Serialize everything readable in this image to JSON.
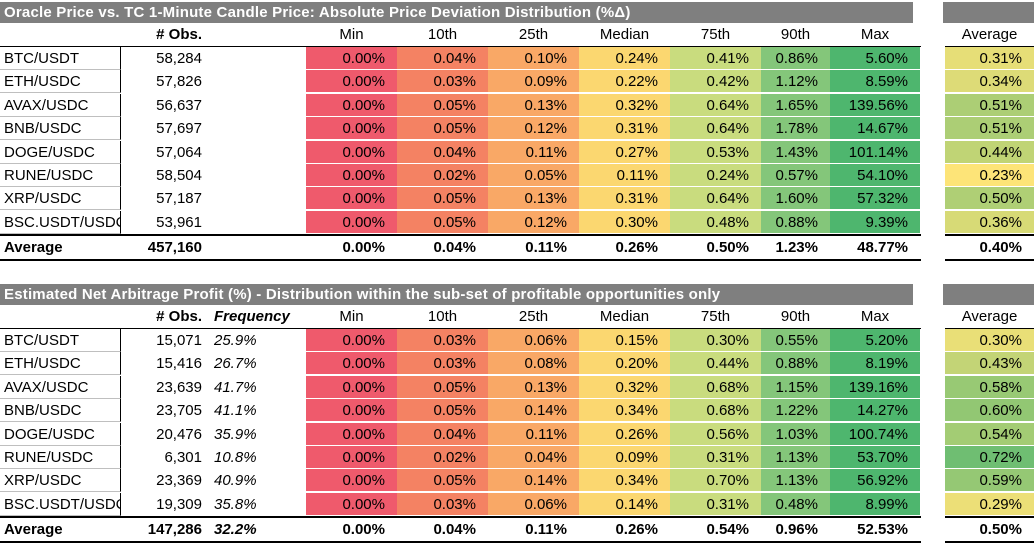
{
  "cols": [
    "Min",
    "10th",
    "25th",
    "Median",
    "75th",
    "90th",
    "Max"
  ],
  "avg_col": "Average",
  "obs_col": "# Obs.",
  "freq_col": "Frequency",
  "table1": {
    "title": "Oracle Price vs. TC 1-Minute Candle Price: Absolute Price Deviation Distribution (%Δ)",
    "rows": [
      {
        "pair": "BTC/USDT",
        "obs": "58,284",
        "vals": [
          "0.00%",
          "0.04%",
          "0.10%",
          "0.24%",
          "0.41%",
          "0.86%",
          "5.60%"
        ],
        "avg": "0.31%"
      },
      {
        "pair": "ETH/USDC",
        "obs": "57,826",
        "vals": [
          "0.00%",
          "0.03%",
          "0.09%",
          "0.22%",
          "0.42%",
          "1.12%",
          "8.59%"
        ],
        "avg": "0.34%"
      },
      {
        "pair": "AVAX/USDC",
        "obs": "56,637",
        "vals": [
          "0.00%",
          "0.05%",
          "0.13%",
          "0.32%",
          "0.64%",
          "1.65%",
          "139.56%"
        ],
        "avg": "0.51%"
      },
      {
        "pair": "BNB/USDC",
        "obs": "57,697",
        "vals": [
          "0.00%",
          "0.05%",
          "0.12%",
          "0.31%",
          "0.64%",
          "1.78%",
          "14.67%"
        ],
        "avg": "0.51%"
      },
      {
        "pair": "DOGE/USDC",
        "obs": "57,064",
        "vals": [
          "0.00%",
          "0.04%",
          "0.11%",
          "0.27%",
          "0.53%",
          "1.43%",
          "101.14%"
        ],
        "avg": "0.44%"
      },
      {
        "pair": "RUNE/USDC",
        "obs": "58,504",
        "vals": [
          "0.00%",
          "0.02%",
          "0.05%",
          "0.11%",
          "0.24%",
          "0.57%",
          "54.10%"
        ],
        "avg": "0.23%"
      },
      {
        "pair": "XRP/USDC",
        "obs": "57,187",
        "vals": [
          "0.00%",
          "0.05%",
          "0.13%",
          "0.31%",
          "0.64%",
          "1.60%",
          "57.32%"
        ],
        "avg": "0.50%"
      },
      {
        "pair": "BSC.USDT/USDC",
        "obs": "53,961",
        "vals": [
          "0.00%",
          "0.05%",
          "0.12%",
          "0.30%",
          "0.48%",
          "0.88%",
          "9.39%"
        ],
        "avg": "0.36%"
      }
    ],
    "average": {
      "label": "Average",
      "obs": "457,160",
      "vals": [
        "0.00%",
        "0.04%",
        "0.11%",
        "0.26%",
        "0.50%",
        "1.23%",
        "48.77%"
      ],
      "avg": "0.40%"
    }
  },
  "table2": {
    "title": "Estimated Net Arbitrage Profit (%) - Distribution within the sub-set of profitable opportunities only",
    "rows": [
      {
        "pair": "BTC/USDT",
        "obs": "15,071",
        "freq": "25.9%",
        "vals": [
          "0.00%",
          "0.03%",
          "0.06%",
          "0.15%",
          "0.30%",
          "0.55%",
          "5.20%"
        ],
        "avg": "0.30%"
      },
      {
        "pair": "ETH/USDC",
        "obs": "15,416",
        "freq": "26.7%",
        "vals": [
          "0.00%",
          "0.03%",
          "0.08%",
          "0.20%",
          "0.44%",
          "0.88%",
          "8.19%"
        ],
        "avg": "0.43%"
      },
      {
        "pair": "AVAX/USDC",
        "obs": "23,639",
        "freq": "41.7%",
        "vals": [
          "0.00%",
          "0.05%",
          "0.13%",
          "0.32%",
          "0.68%",
          "1.15%",
          "139.16%"
        ],
        "avg": "0.58%"
      },
      {
        "pair": "BNB/USDC",
        "obs": "23,705",
        "freq": "41.1%",
        "vals": [
          "0.00%",
          "0.05%",
          "0.14%",
          "0.34%",
          "0.68%",
          "1.22%",
          "14.27%"
        ],
        "avg": "0.60%"
      },
      {
        "pair": "DOGE/USDC",
        "obs": "20,476",
        "freq": "35.9%",
        "vals": [
          "0.00%",
          "0.04%",
          "0.11%",
          "0.26%",
          "0.56%",
          "1.03%",
          "100.74%"
        ],
        "avg": "0.54%"
      },
      {
        "pair": "RUNE/USDC",
        "obs": "6,301",
        "freq": "10.8%",
        "vals": [
          "0.00%",
          "0.02%",
          "0.04%",
          "0.09%",
          "0.31%",
          "1.13%",
          "53.70%"
        ],
        "avg": "0.72%"
      },
      {
        "pair": "XRP/USDC",
        "obs": "23,369",
        "freq": "40.9%",
        "vals": [
          "0.00%",
          "0.05%",
          "0.14%",
          "0.34%",
          "0.70%",
          "1.13%",
          "56.92%"
        ],
        "avg": "0.59%"
      },
      {
        "pair": "BSC.USDT/USDC",
        "obs": "19,309",
        "freq": "35.8%",
        "vals": [
          "0.00%",
          "0.03%",
          "0.06%",
          "0.14%",
          "0.31%",
          "0.48%",
          "8.99%"
        ],
        "avg": "0.29%"
      }
    ],
    "average": {
      "label": "Average",
      "obs": "147,286",
      "freq": "32.2%",
      "vals": [
        "0.00%",
        "0.04%",
        "0.11%",
        "0.26%",
        "0.54%",
        "0.96%",
        "52.53%"
      ],
      "avg": "0.50%"
    }
  },
  "colors": {
    "scale": [
      "#ef5a6c",
      "#f48263",
      "#f9a866",
      "#fbd770",
      "#c9dc7e",
      "#84c67a",
      "#4eb66e"
    ],
    "avg_low": "#fde478",
    "avg_high": "#6fbe72"
  }
}
